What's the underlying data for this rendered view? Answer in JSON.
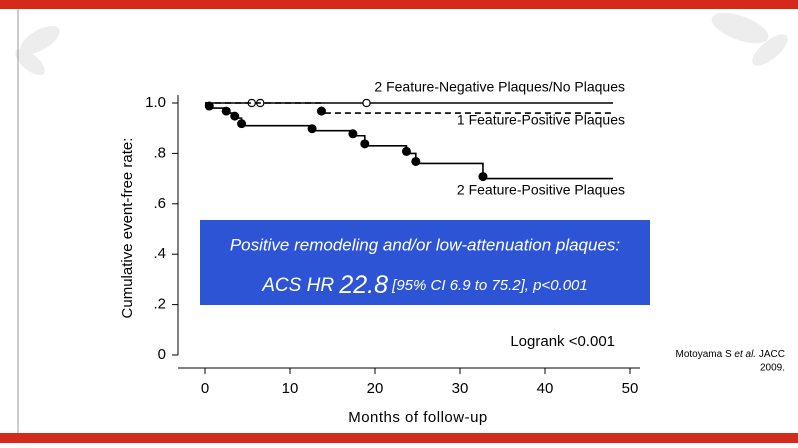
{
  "chart_data": {
    "type": "step",
    "x_label": "Months of follow-up",
    "y_label": "Cumulative event-free rate:",
    "xlim": [
      0,
      50
    ],
    "xticks": [
      0,
      10,
      20,
      30,
      40,
      50
    ],
    "ylim": [
      0,
      1.0
    ],
    "yticks": [
      0,
      {
        "value": 0.2,
        "label": ".2"
      },
      {
        "value": 0.4,
        "label": ".4"
      },
      {
        "value": 0.6,
        "label": ".6"
      },
      {
        "value": 0.8,
        "label": ".8"
      },
      {
        "value": 1.0,
        "label": "1.0"
      }
    ],
    "series": [
      {
        "name": "2 Feature-Negative Plaques/No Plaques",
        "color": "#000000",
        "dash": false,
        "x": [
          0,
          48
        ],
        "values": [
          1.0,
          1.0
        ],
        "censored_x": [
          5.5,
          6.5,
          19
        ]
      },
      {
        "name": "1 Feature-Positive Plaques",
        "color": "#000000",
        "dash": true,
        "x": [
          0,
          13.7,
          48
        ],
        "values": [
          1.0,
          0.96,
          0.96
        ],
        "censored_x": []
      },
      {
        "name": "2 Feature-Positive Plaques",
        "color": "#000000",
        "dash": false,
        "x": [
          0,
          0.5,
          2.5,
          3.5,
          4.3,
          12.6,
          17.4,
          18.8,
          23.7,
          24.8,
          32.7,
          48
        ],
        "values": [
          1.0,
          0.98,
          0.96,
          0.94,
          0.91,
          0.89,
          0.87,
          0.83,
          0.8,
          0.76,
          0.7,
          0.7
        ],
        "censored_x": []
      }
    ],
    "box": {
      "line1": "Positive remodeling and/or low-attenuation plaques:",
      "line2_start": "ACS HR ",
      "line2_hr": "22.8",
      "line2_end": " [95% CI 6.9 to 75.2], p<0.001"
    },
    "logrank": "Logrank <0.001",
    "citation": {
      "author": "Motoyama S ",
      "etal": "et al.",
      "journal": " JACC",
      "year": "2009."
    }
  }
}
